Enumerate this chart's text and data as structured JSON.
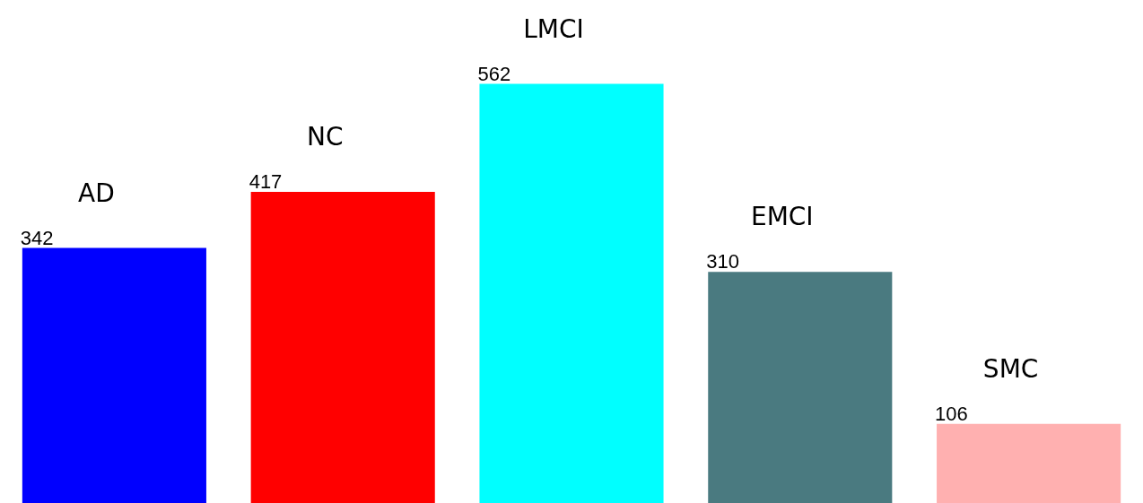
{
  "chart_data": {
    "type": "bar",
    "categories": [
      "AD",
      "NC",
      "LMCI",
      "EMCI",
      "SMC"
    ],
    "values": [
      342,
      417,
      562,
      310,
      106
    ],
    "colors": [
      "#0000ff",
      "#ff0000",
      "#00ffff",
      "#4a7a80",
      "#ffb0b0"
    ],
    "data_labels": true,
    "tick_labels": false
  }
}
